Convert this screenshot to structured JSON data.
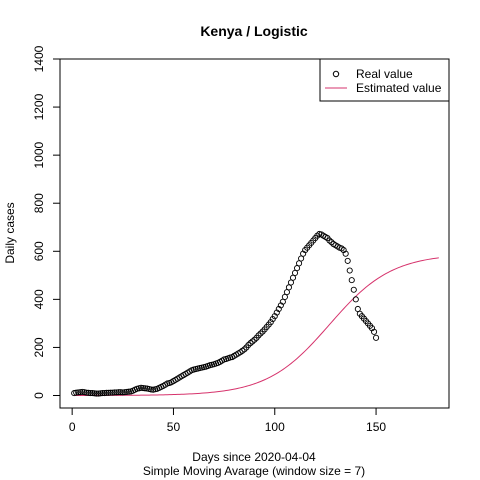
{
  "chart_data": {
    "type": "scatter",
    "title": "Kenya / Logistic",
    "xlabel": "Days since 2020-04-04",
    "subtitle": "Simple Moving Avarage (window size = 7)",
    "ylabel": "Daily cases",
    "xlim": [
      -6,
      186
    ],
    "ylim": [
      -52,
      1400
    ],
    "x_ticks": [
      0,
      50,
      100,
      150
    ],
    "y_ticks": [
      0,
      200,
      400,
      600,
      800,
      1000,
      1200,
      1400
    ],
    "grid": false,
    "legend_position": "top-right",
    "colors": {
      "real": "#000000",
      "estimated": "#d6336c"
    },
    "series": [
      {
        "name": "Real value",
        "kind": "points",
        "x": [
          1,
          2,
          3,
          4,
          5,
          6,
          7,
          8,
          9,
          10,
          11,
          12,
          13,
          14,
          15,
          16,
          17,
          18,
          19,
          20,
          21,
          22,
          23,
          24,
          25,
          26,
          27,
          28,
          29,
          30,
          31,
          32,
          33,
          34,
          35,
          36,
          37,
          38,
          39,
          40,
          41,
          42,
          43,
          44,
          45,
          46,
          47,
          48,
          49,
          50,
          51,
          52,
          53,
          54,
          55,
          56,
          57,
          58,
          59,
          60,
          61,
          62,
          63,
          64,
          65,
          66,
          67,
          68,
          69,
          70,
          71,
          72,
          73,
          74,
          75,
          76,
          77,
          78,
          79,
          80,
          81,
          82,
          83,
          84,
          85,
          86,
          87,
          88,
          89,
          90,
          91,
          92,
          93,
          94,
          95,
          96,
          97,
          98,
          99,
          100,
          101,
          102,
          103,
          104,
          105,
          106,
          107,
          108,
          109,
          110,
          111,
          112,
          113,
          114,
          115,
          116,
          117,
          118,
          119,
          120,
          121,
          122,
          123,
          124,
          125,
          126,
          127,
          128,
          129,
          130,
          131,
          132,
          133,
          134,
          135,
          136,
          137,
          138,
          139,
          140,
          141,
          142,
          143,
          144,
          145,
          146,
          147,
          148,
          149,
          150
        ],
        "y": [
          10,
          12,
          13,
          14,
          15,
          14,
          12,
          11,
          10,
          10,
          9,
          8,
          8,
          9,
          10,
          10,
          11,
          11,
          12,
          12,
          13,
          13,
          14,
          14,
          13,
          14,
          15,
          16,
          17,
          20,
          24,
          28,
          30,
          32,
          31,
          30,
          29,
          27,
          25,
          24,
          26,
          28,
          32,
          36,
          40,
          45,
          50,
          52,
          55,
          60,
          65,
          70,
          75,
          80,
          85,
          90,
          95,
          100,
          105,
          108,
          110,
          112,
          114,
          116,
          118,
          120,
          123,
          126,
          128,
          130,
          133,
          136,
          140,
          145,
          150,
          152,
          155,
          158,
          160,
          165,
          170,
          175,
          180,
          186,
          192,
          200,
          210,
          218,
          225,
          232,
          240,
          250,
          258,
          266,
          275,
          285,
          295,
          305,
          318,
          330,
          345,
          360,
          375,
          390,
          410,
          430,
          450,
          470,
          490,
          510,
          530,
          550,
          570,
          590,
          605,
          615,
          625,
          635,
          645,
          655,
          665,
          672,
          670,
          665,
          660,
          655,
          645,
          638,
          630,
          625,
          620,
          615,
          612,
          605,
          590,
          560,
          520,
          480,
          440,
          400,
          360,
          340,
          330,
          320,
          310,
          300,
          290,
          280,
          265,
          240
        ]
      },
      {
        "name": "Estimated value",
        "kind": "line",
        "K": 590,
        "r": 0.065,
        "t0": 127,
        "x_end": 181
      }
    ]
  }
}
